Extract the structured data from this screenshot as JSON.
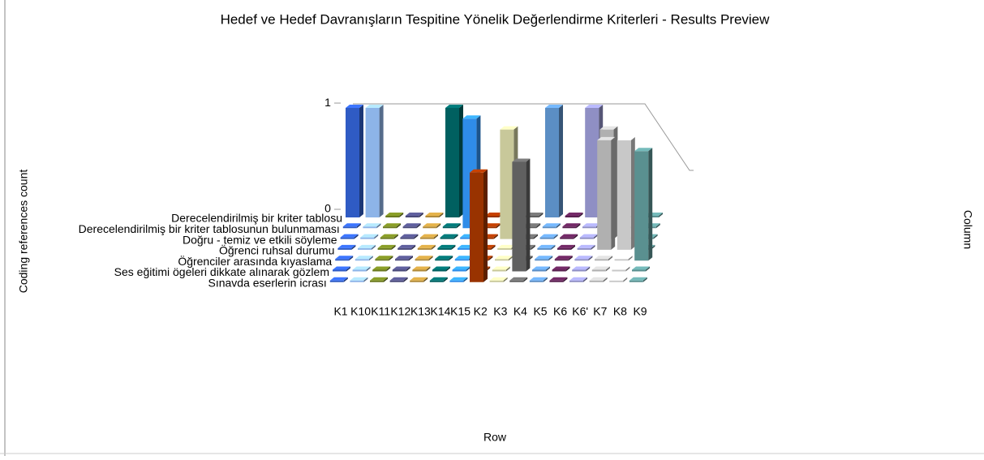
{
  "chart_data": {
    "type": "bar3d",
    "title": "Hedef ve Hedef Davranışların Tespitine Yönelik Değerlendirme Kriterleri - Results Preview",
    "z_label": "Coding references count",
    "x_label": "Row",
    "y_label": "Column",
    "categories": [
      "K1",
      "K10",
      "K11",
      "K12",
      "K13",
      "K14",
      "K15",
      "K2",
      "K3",
      "K4",
      "K5",
      "K6",
      "K6'",
      "K7",
      "K8",
      "K9"
    ],
    "colors": [
      "#2f5bc4",
      "#8db4e8",
      "#6b7a1f",
      "#4a4a7a",
      "#b08a3a",
      "#006060",
      "#2f8ce8",
      "#993300",
      "#c8c89a",
      "#606060",
      "#5b8ec4",
      "#5a2050",
      "#8f8fc4",
      "#b0b0b0",
      "#c8c8c8",
      "#5a9090"
    ],
    "zlim": [
      0,
      1
    ],
    "zticks": [
      0,
      1
    ],
    "series": [
      {
        "name": "Derecelendirilmiş bir kriter tablosu",
        "values": [
          1,
          1,
          0,
          0,
          0,
          1,
          0,
          0,
          0,
          0,
          1,
          0,
          1,
          0,
          0,
          0
        ]
      },
      {
        "name": "Derecelendirilmiş bir kriter tablosunun bulunmaması",
        "values": [
          0,
          0,
          0,
          0,
          0,
          0,
          1,
          0,
          0,
          0,
          0,
          0,
          0,
          0,
          0,
          0
        ]
      },
      {
        "name": "Doğru - temiz ve etkili söyleme",
        "values": [
          0,
          0,
          0,
          0,
          0,
          0,
          0,
          0,
          1,
          0,
          0,
          0,
          0,
          1,
          0,
          0
        ]
      },
      {
        "name": "Öğrenci ruhsal durumu",
        "values": [
          0,
          0,
          0,
          0,
          0,
          0,
          0,
          0,
          0,
          0,
          0,
          0,
          0,
          1,
          1,
          0
        ]
      },
      {
        "name": "Öğrenciler arasında kıyaslama",
        "values": [
          0,
          0,
          0,
          0,
          0,
          0,
          0,
          0,
          0,
          0,
          0,
          0,
          0,
          0,
          0,
          1
        ]
      },
      {
        "name": "Ses eğitimi ögeleri dikkate alınarak gözlem",
        "values": [
          0,
          0,
          0,
          0,
          0,
          0,
          0,
          0,
          0,
          1,
          0,
          0,
          0,
          0,
          0,
          0
        ]
      },
      {
        "name": "Sınavda eserlerin icrası",
        "values": [
          0,
          0,
          0,
          0,
          0,
          0,
          0,
          1,
          0,
          0,
          0,
          0,
          0,
          0,
          0,
          0
        ]
      }
    ]
  }
}
